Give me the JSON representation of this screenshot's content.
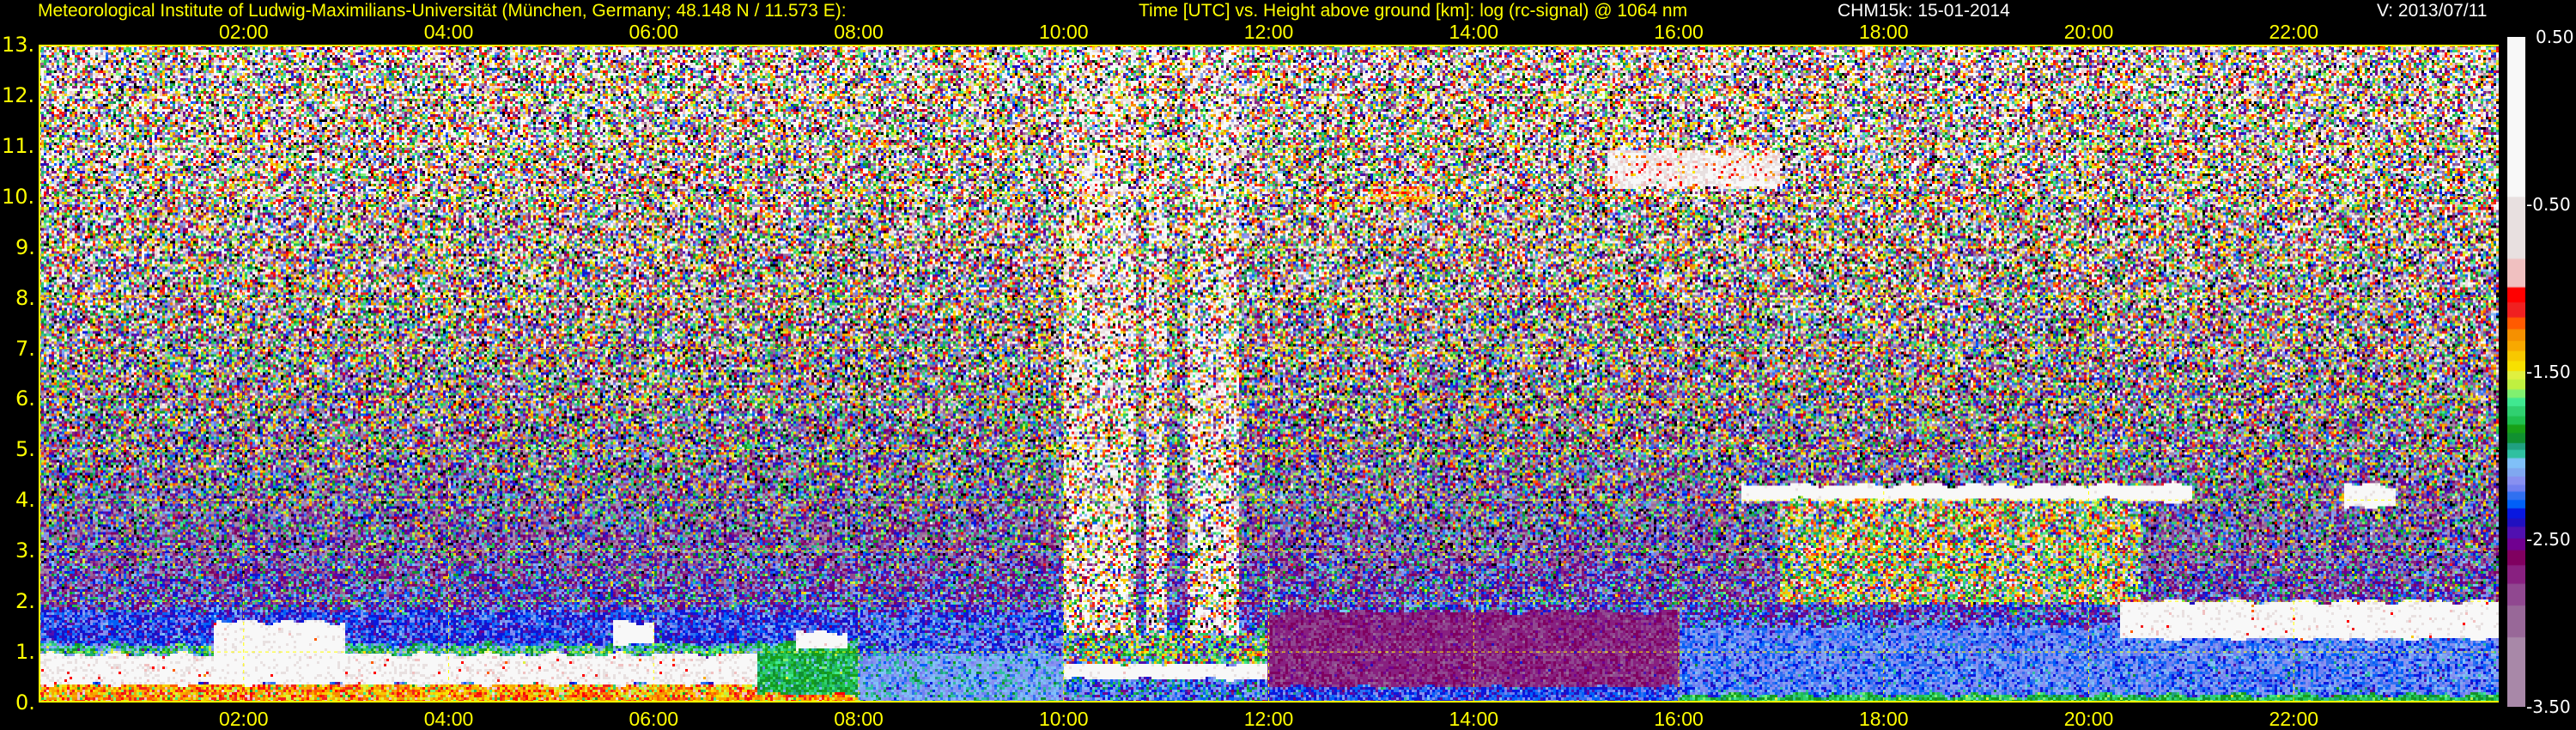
{
  "header": {
    "institute": "Meteorological Institute of Ludwig-Maximilians-Universität (München, Germany; 48.148 N / 11.573 E):",
    "plot_title": "Time [UTC] vs. Height above ground [km]: log (rc-signal) @ 1064 nm",
    "instrument_date": "CHM15k: 15-01-2014",
    "version": "V: 2013/07/11"
  },
  "chart_data": {
    "type": "heatmap",
    "title": "Time [UTC] vs. Height above ground [km]: log (rc-signal) @ 1064 nm",
    "xlabel": "Time [UTC]",
    "ylabel": "Height above ground [km]",
    "xlim": [
      0,
      24
    ],
    "ylim": [
      0,
      13
    ],
    "x_ticks": [
      "02:00",
      "04:00",
      "06:00",
      "08:00",
      "10:00",
      "12:00",
      "14:00",
      "16:00",
      "18:00",
      "20:00",
      "22:00"
    ],
    "y_ticks": [
      "0.",
      "1.",
      "2.",
      "3.",
      "4.",
      "5.",
      "6.",
      "7.",
      "8.",
      "9.",
      "10.",
      "11.",
      "12.",
      "13."
    ],
    "grid": true,
    "colorbar": {
      "range": [
        -3.5,
        0.5
      ],
      "tick_labels": [
        "0.50",
        "-0.50",
        "-1.50",
        "-2.50",
        "-3.50"
      ],
      "tick_values": [
        0.5,
        -0.5,
        -1.5,
        -2.5,
        -3.5
      ],
      "below_range_color": "#000000",
      "bins": [
        {
          "from": -3.5,
          "to": -3.08,
          "color": "#a888a8"
        },
        {
          "from": -3.08,
          "to": -2.89,
          "color": "#986898"
        },
        {
          "from": -2.89,
          "to": -2.76,
          "color": "#904890"
        },
        {
          "from": -2.76,
          "to": -2.65,
          "color": "#882080"
        },
        {
          "from": -2.65,
          "to": -2.56,
          "color": "#800060"
        },
        {
          "from": -2.56,
          "to": -2.49,
          "color": "#700090"
        },
        {
          "from": -2.49,
          "to": -2.42,
          "color": "#5010b0"
        },
        {
          "from": -2.42,
          "to": -2.37,
          "color": "#2010c0"
        },
        {
          "from": -2.37,
          "to": -2.31,
          "color": "#0818e0"
        },
        {
          "from": -2.31,
          "to": -2.26,
          "color": "#0060f8"
        },
        {
          "from": -2.26,
          "to": -2.21,
          "color": "#3070f0"
        },
        {
          "from": -2.21,
          "to": -2.17,
          "color": "#7080f0"
        },
        {
          "from": -2.17,
          "to": -2.12,
          "color": "#8890f0"
        },
        {
          "from": -2.12,
          "to": -2.07,
          "color": "#80a8f0"
        },
        {
          "from": -2.07,
          "to": -2.01,
          "color": "#80c0f8"
        },
        {
          "from": -2.01,
          "to": -1.96,
          "color": "#30c0a0"
        },
        {
          "from": -1.96,
          "to": -1.92,
          "color": "#20a080"
        },
        {
          "from": -1.92,
          "to": -1.86,
          "color": "#109030"
        },
        {
          "from": -1.86,
          "to": -1.81,
          "color": "#18a018"
        },
        {
          "from": -1.81,
          "to": -1.76,
          "color": "#20c050"
        },
        {
          "from": -1.76,
          "to": -1.7,
          "color": "#30d070"
        },
        {
          "from": -1.7,
          "to": -1.65,
          "color": "#40e890"
        },
        {
          "from": -1.65,
          "to": -1.6,
          "color": "#80f070"
        },
        {
          "from": -1.6,
          "to": -1.54,
          "color": "#c0f040"
        },
        {
          "from": -1.54,
          "to": -1.49,
          "color": "#e0f040"
        },
        {
          "from": -1.49,
          "to": -1.43,
          "color": "#f8e000"
        },
        {
          "from": -1.43,
          "to": -1.37,
          "color": "#f8c800"
        },
        {
          "from": -1.37,
          "to": -1.31,
          "color": "#f8a800"
        },
        {
          "from": -1.31,
          "to": -1.24,
          "color": "#f59000"
        },
        {
          "from": -1.24,
          "to": -1.17,
          "color": "#ff5a00"
        },
        {
          "from": -1.17,
          "to": -1.08,
          "color": "#f02020"
        },
        {
          "from": -1.08,
          "to": -0.99,
          "color": "#ff0000"
        },
        {
          "from": -0.99,
          "to": -0.82,
          "color": "#f0c0c0"
        },
        {
          "from": -0.82,
          "to": -0.45,
          "color": "#e8e0e0"
        },
        {
          "from": -0.45,
          "to": 0.5,
          "color": "#f8f8f8"
        }
      ]
    },
    "background_profile": [
      {
        "h": 0,
        "mean": -2.3,
        "sd": 0.15
      },
      {
        "h": 1.5,
        "mean": -2.3,
        "sd": 0.25
      },
      {
        "h": 3,
        "mean": -2.55,
        "sd": 0.55
      },
      {
        "h": 5,
        "mean": -2.2,
        "sd": 0.8
      },
      {
        "h": 8,
        "mean": -1.8,
        "sd": 1.0
      },
      {
        "h": 13,
        "mean": -1.35,
        "sd": 1.2
      }
    ],
    "features": [
      {
        "t": [
          0,
          8
        ],
        "h": [
          1.1,
          1.8
        ],
        "value": -2.3,
        "sd": 0.12
      },
      {
        "t": [
          0,
          7.5
        ],
        "h": [
          0.9,
          1.15
        ],
        "value": -1.95,
        "sd": 0.2
      },
      {
        "t": [
          0,
          8
        ],
        "h": [
          0,
          0.4
        ],
        "value": -1.3,
        "sd": 0.2
      },
      {
        "t": [
          0,
          7.5
        ],
        "h": [
          0.4,
          0.95
        ],
        "value": -0.2,
        "sd": 0.4
      },
      {
        "t": [
          1.7,
          3.0
        ],
        "h": [
          0.4,
          1.6
        ],
        "value": -0.1,
        "sd": 0.3
      },
      {
        "t": [
          5.6,
          6.0
        ],
        "h": [
          1.2,
          1.6
        ],
        "value": 0.0,
        "sd": 0.2
      },
      {
        "t": [
          7.0,
          8.2
        ],
        "h": [
          0.2,
          1.2
        ],
        "value": -1.85,
        "sd": 0.1
      },
      {
        "t": [
          7.4,
          7.9
        ],
        "h": [
          1.1,
          1.4
        ],
        "value": 0.0,
        "sd": 0.3
      },
      {
        "t": [
          8,
          10
        ],
        "h": [
          0,
          1.0
        ],
        "value": -2.1,
        "sd": 0.1
      },
      {
        "t": [
          8,
          10
        ],
        "h": [
          1.0,
          1.8
        ],
        "value": -2.25,
        "sd": 0.15
      },
      {
        "t": [
          10,
          12
        ],
        "h": [
          0,
          0.5
        ],
        "value": -2.2,
        "sd": 0.2
      },
      {
        "t": [
          10,
          12
        ],
        "h": [
          0.5,
          0.8
        ],
        "value": 0.0,
        "sd": 0.3
      },
      {
        "t": [
          10,
          12
        ],
        "h": [
          0.8,
          1.4
        ],
        "value": -1.8,
        "sd": 0.5
      },
      {
        "t": [
          10.0,
          10.7
        ],
        "h": [
          1.4,
          13
        ],
        "value": -1.0,
        "sd": 1.3
      },
      {
        "t": [
          10.8,
          11.0
        ],
        "h": [
          1.4,
          13
        ],
        "value": -1.0,
        "sd": 1.3
      },
      {
        "t": [
          11.2,
          11.7
        ],
        "h": [
          1.4,
          13
        ],
        "value": -1.0,
        "sd": 1.3
      },
      {
        "t": [
          12,
          16
        ],
        "h": [
          0.3,
          1.8
        ],
        "value": -2.7,
        "sd": 0.1
      },
      {
        "t": [
          12,
          16
        ],
        "h": [
          0,
          0.3
        ],
        "value": -2.3,
        "sd": 0.1
      },
      {
        "t": [
          16,
          24
        ],
        "h": [
          0.15,
          1.5
        ],
        "value": -2.2,
        "sd": 0.1
      },
      {
        "t": [
          16,
          24
        ],
        "h": [
          0,
          0.15
        ],
        "value": -1.8,
        "sd": 0.1
      },
      {
        "t": [
          13.0,
          13.6
        ],
        "h": [
          9.9,
          10.2
        ],
        "value": -1.2,
        "sd": 0.3
      },
      {
        "t": [
          15.3,
          17.0
        ],
        "h": [
          10.2,
          10.9
        ],
        "value": -0.5,
        "sd": 0.4
      },
      {
        "t": [
          16.6,
          21.0
        ],
        "h": [
          4.0,
          4.3
        ],
        "value": 0.2,
        "sd": 0.3
      },
      {
        "t": [
          17.0,
          20.5
        ],
        "h": [
          2.0,
          4.0
        ],
        "value": -1.6,
        "sd": 0.6
      },
      {
        "t": [
          20.3,
          24
        ],
        "h": [
          1.3,
          2.0
        ],
        "value": 0.0,
        "sd": 0.4
      },
      {
        "t": [
          22.5,
          23.0
        ],
        "h": [
          3.9,
          4.3
        ],
        "value": 0.0,
        "sd": 0.3
      }
    ]
  }
}
